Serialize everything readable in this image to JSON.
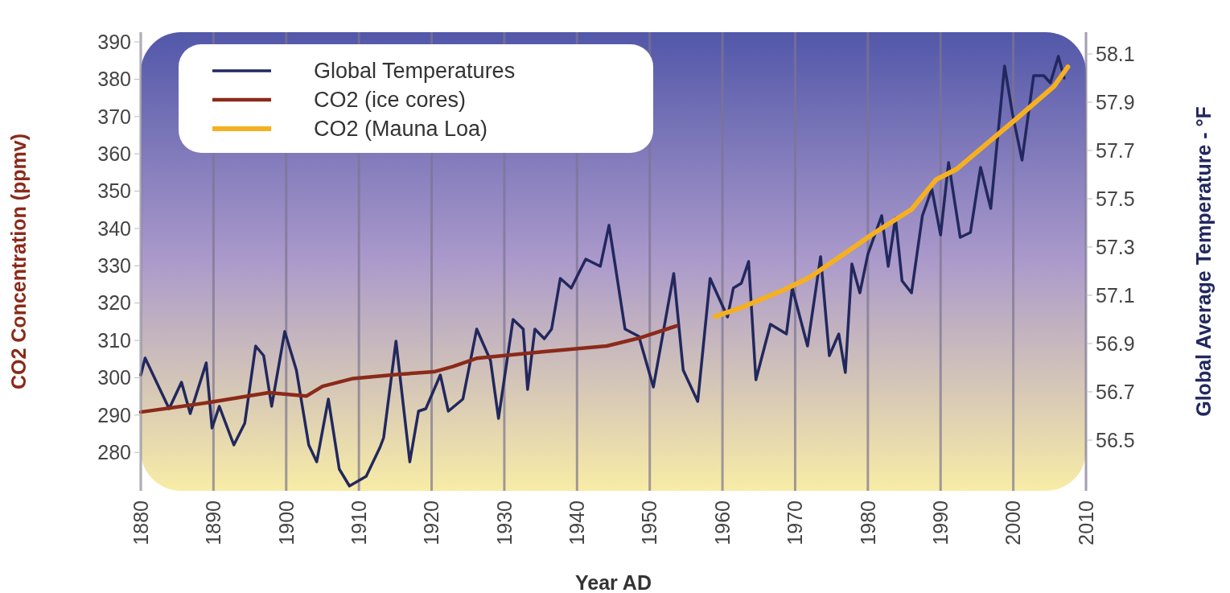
{
  "chart_data": {
    "type": "line",
    "xlabel": "Year AD",
    "ylabel": "CO2 Concentration (ppmv)",
    "y2label": "Global Average Temperature - °F",
    "xlim": [
      1880,
      2010
    ],
    "xticks": [
      1880,
      1890,
      1900,
      1910,
      1920,
      1930,
      1940,
      1950,
      1960,
      1970,
      1980,
      1990,
      2000,
      2010
    ],
    "ylim": [
      269.7,
      392.6
    ],
    "yticks": [
      280,
      290,
      300,
      310,
      320,
      330,
      340,
      350,
      360,
      370,
      380,
      390
    ],
    "y2lim": [
      56.29,
      58.19
    ],
    "y2ticks": [
      {
        "value": 56.5,
        "label": "56.5"
      },
      {
        "value": 56.7,
        "label": "56.7"
      },
      {
        "value": 56.9,
        "label": "56.9"
      },
      {
        "value": 57.1,
        "label": "57.1"
      },
      {
        "value": 57.3,
        "label": "57.3"
      },
      {
        "value": 57.5,
        "label": "57.5"
      },
      {
        "value": 57.7,
        "label": "57.7"
      },
      {
        "value": 57.9,
        "label": "57.9"
      },
      {
        "value": 58.1,
        "label": "58.1"
      }
    ],
    "grid": "x",
    "legend": "top left",
    "marker": "none",
    "line_style": "solid",
    "series": [
      {
        "name": "Global Temperatures",
        "color": "#22285e",
        "axis": "y2",
        "x": [
          1880,
          1880.6,
          1883.9,
          1885.6,
          1886.8,
          1889,
          1889.8,
          1890.8,
          1892.8,
          1894.3,
          1895.8,
          1896.9,
          1898,
          1899.8,
          1901.4,
          1903.1,
          1904.2,
          1905.8,
          1907.3,
          1908.7,
          1911,
          1912.9,
          1913.4,
          1915.1,
          1917,
          1918.2,
          1919.2,
          1921.2,
          1922.3,
          1924.3,
          1926.2,
          1928.1,
          1929.2,
          1931.2,
          1932.6,
          1933.2,
          1934.2,
          1935.5,
          1936.5,
          1937.7,
          1939.2,
          1941.2,
          1943.2,
          1944.4,
          1946.6,
          1948.5,
          1950.5,
          1953.3,
          1954.6,
          1956.6,
          1958.3,
          1960.7,
          1961.5,
          1962.6,
          1963.6,
          1964.6,
          1966.6,
          1968.8,
          1969.6,
          1971.7,
          1973.5,
          1974.7,
          1976,
          1976.9,
          1977.8,
          1978.9,
          1980,
          1981.9,
          1982.8,
          1983.8,
          1984.7,
          1986,
          1987.5,
          1988.8,
          1990,
          1991.1,
          1992.7,
          1994.1,
          1995.5,
          1996.9,
          1998.8,
          1999.9,
          2001.2,
          2002.8,
          2004.2,
          2005.1,
          2006.2,
          2007
        ],
        "values": [
          56.77,
          56.84,
          56.63,
          56.74,
          56.61,
          56.82,
          56.55,
          56.64,
          56.48,
          56.57,
          56.89,
          56.85,
          56.64,
          56.95,
          56.79,
          56.48,
          56.41,
          56.67,
          56.38,
          56.31,
          56.35,
          56.47,
          56.51,
          56.91,
          56.41,
          56.62,
          56.63,
          56.77,
          56.62,
          56.67,
          56.96,
          56.83,
          56.59,
          57.0,
          56.96,
          56.71,
          56.96,
          56.92,
          56.96,
          57.17,
          57.13,
          57.25,
          57.22,
          57.39,
          56.96,
          56.93,
          56.72,
          57.19,
          56.79,
          56.66,
          57.17,
          57.01,
          57.13,
          57.15,
          57.24,
          56.75,
          56.98,
          56.94,
          57.13,
          56.89,
          57.26,
          56.85,
          56.94,
          56.78,
          57.23,
          57.11,
          57.27,
          57.43,
          57.22,
          57.42,
          57.16,
          57.11,
          57.43,
          57.54,
          57.35,
          57.65,
          57.34,
          57.36,
          57.63,
          57.46,
          58.05,
          57.85,
          57.66,
          58.01,
          58.01,
          57.98,
          58.09,
          58.0
        ]
      },
      {
        "name": "CO2 (ice cores)",
        "color": "#8b2a1a",
        "x": [
          1880,
          1889.5,
          1897.6,
          1902.8,
          1905,
          1909.2,
          1915.4,
          1920.3,
          1922.9,
          1926.2,
          1935.5,
          1944.1,
          1948.5,
          1953.7
        ],
        "values": [
          290.8,
          293.4,
          296,
          295.1,
          297.7,
          299.8,
          300.9,
          301.6,
          303,
          305.2,
          307,
          308.5,
          310.6,
          313.9
        ]
      },
      {
        "name": "CO2 (Mauna Loa)",
        "color": "#f5b021",
        "x": [
          1959,
          1962.6,
          1968.5,
          1971.9,
          1977.1,
          1980.8,
          1986,
          1989.4,
          1992.2,
          1996.4,
          2000.5,
          2005.6,
          2007.5
        ],
        "values": [
          316.4,
          318.8,
          323.6,
          326.8,
          333.7,
          338.7,
          345.1,
          353.1,
          355.9,
          362.8,
          369.5,
          378.1,
          383.3
        ]
      }
    ]
  }
}
